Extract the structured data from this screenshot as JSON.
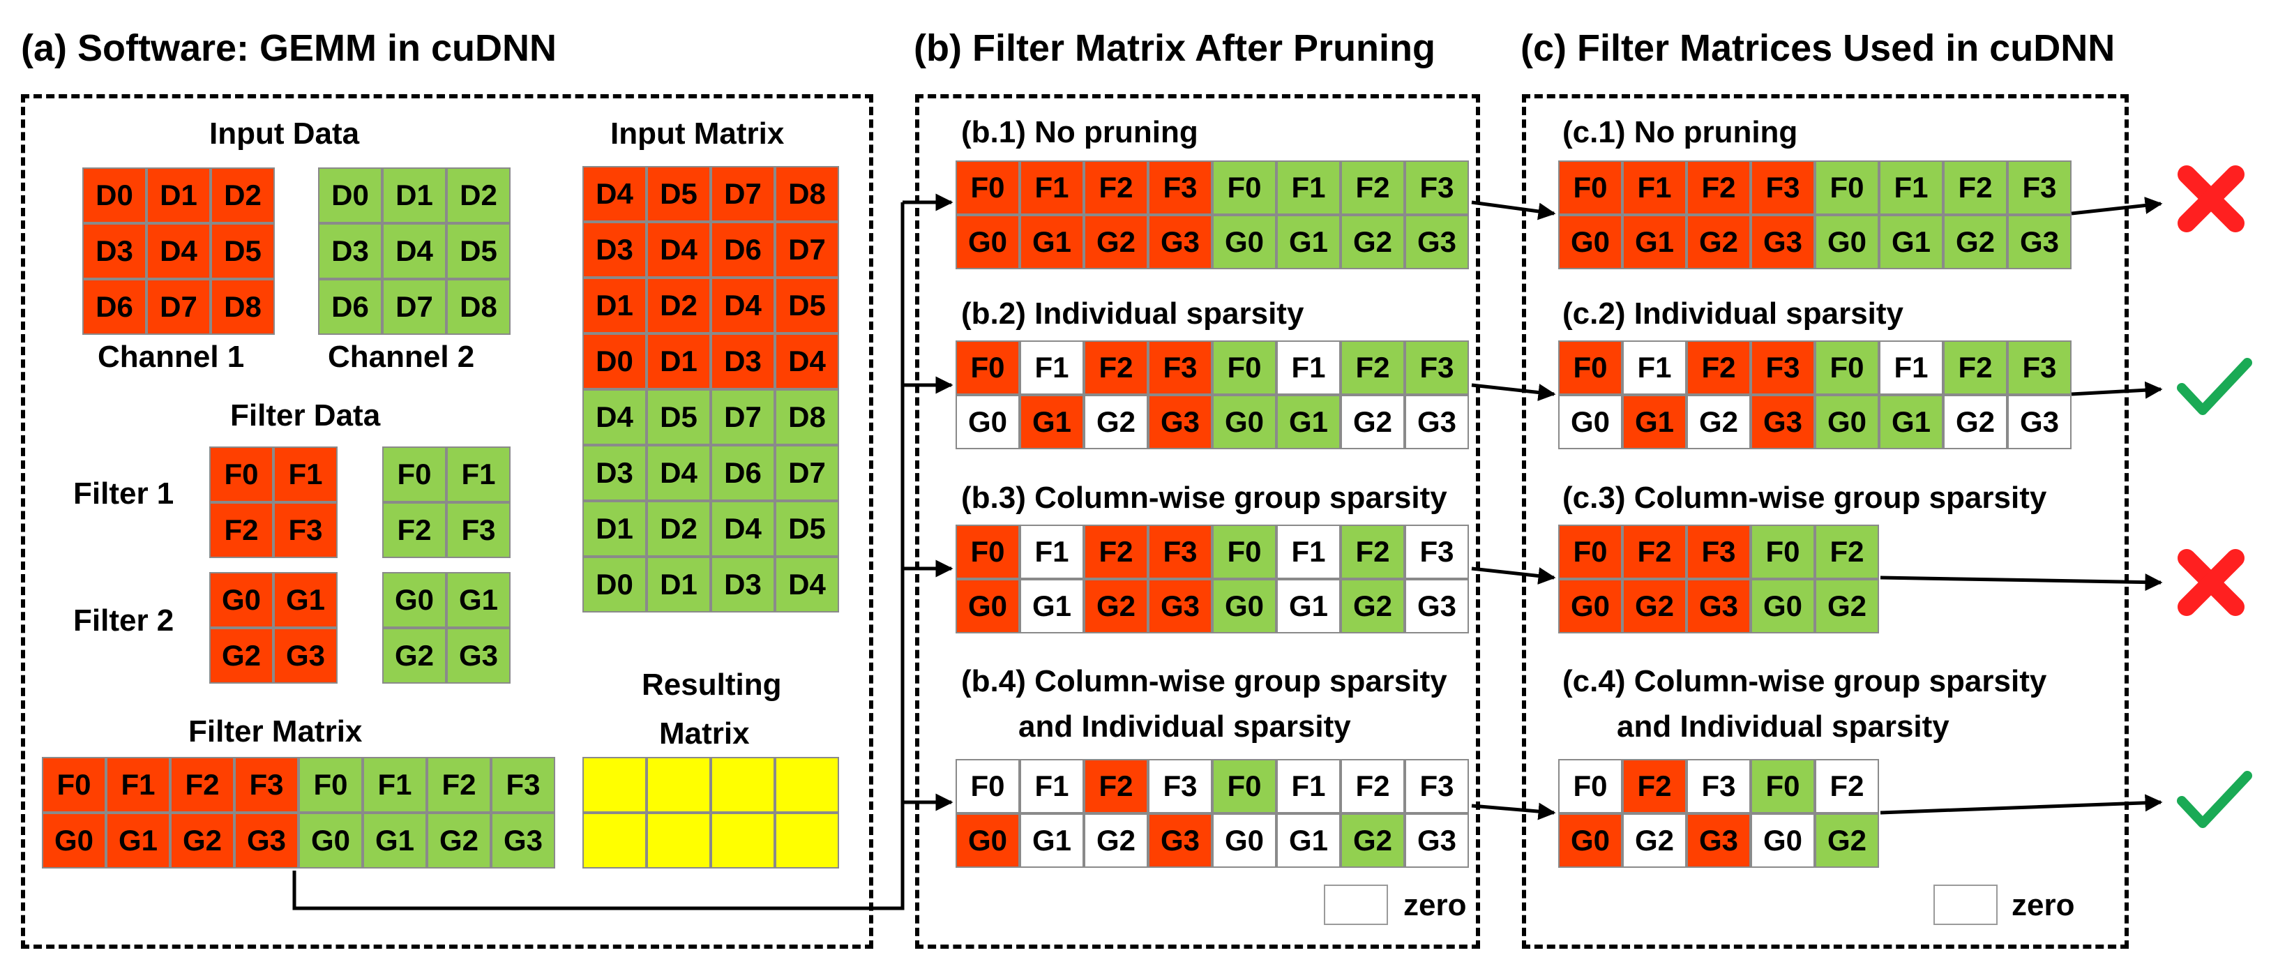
{
  "colors": {
    "red": "#ff4000",
    "green": "#92d050",
    "white": "#ffffff",
    "yellow": "#ffff00",
    "cross": "#ff2020",
    "check": "#1aaa55"
  },
  "titles": {
    "a": "(a) Software: GEMM in cuDNN",
    "b": "(b) Filter Matrix After Pruning",
    "c": "(c) Filter Matrices Used in cuDNN"
  },
  "software": {
    "input_data_label": "Input Data",
    "channel1_label": "Channel 1",
    "channel2_label": "Channel 2",
    "filter_data_label": "Filter Data",
    "filter1_label": "Filter 1",
    "filter2_label": "Filter 2",
    "filter_matrix_label": "Filter Matrix",
    "input_matrix_label": "Input Matrix",
    "resulting_label_line1": "Resulting",
    "resulting_label_line2": "Matrix",
    "channel_cells": [
      "D0",
      "D1",
      "D2",
      "D3",
      "D4",
      "D5",
      "D6",
      "D7",
      "D8"
    ],
    "filter1_cells": [
      "F0",
      "F1",
      "F2",
      "F3"
    ],
    "filter2_cells": [
      "G0",
      "G1",
      "G2",
      "G3"
    ],
    "input_matrix_rows": [
      [
        "D4",
        "D5",
        "D7",
        "D8"
      ],
      [
        "D3",
        "D4",
        "D6",
        "D7"
      ],
      [
        "D1",
        "D2",
        "D4",
        "D5"
      ],
      [
        "D0",
        "D1",
        "D3",
        "D4"
      ],
      [
        "D4",
        "D5",
        "D7",
        "D8"
      ],
      [
        "D3",
        "D4",
        "D6",
        "D7"
      ],
      [
        "D1",
        "D2",
        "D4",
        "D5"
      ],
      [
        "D0",
        "D1",
        "D3",
        "D4"
      ]
    ],
    "filter_matrix_rows": [
      [
        "F0",
        "F1",
        "F2",
        "F3",
        "F0",
        "F1",
        "F2",
        "F3"
      ],
      [
        "G0",
        "G1",
        "G2",
        "G3",
        "G0",
        "G1",
        "G2",
        "G3"
      ]
    ]
  },
  "pruning": [
    {
      "label": "(b.1) No pruning",
      "rows": [
        [
          "F0",
          "F1",
          "F2",
          "F3",
          "F0",
          "F1",
          "F2",
          "F3"
        ],
        [
          "G0",
          "G1",
          "G2",
          "G3",
          "G0",
          "G1",
          "G2",
          "G3"
        ]
      ],
      "colors": [
        [
          "r",
          "r",
          "r",
          "r",
          "g",
          "g",
          "g",
          "g"
        ],
        [
          "r",
          "r",
          "r",
          "r",
          "g",
          "g",
          "g",
          "g"
        ]
      ]
    },
    {
      "label": "(b.2) Individual sparsity",
      "rows": [
        [
          "F0",
          "F1",
          "F2",
          "F3",
          "F0",
          "F1",
          "F2",
          "F3"
        ],
        [
          "G0",
          "G1",
          "G2",
          "G3",
          "G0",
          "G1",
          "G2",
          "G3"
        ]
      ],
      "colors": [
        [
          "r",
          "w",
          "r",
          "r",
          "g",
          "w",
          "g",
          "g"
        ],
        [
          "w",
          "r",
          "w",
          "r",
          "g",
          "g",
          "w",
          "w"
        ]
      ]
    },
    {
      "label": "(b.3) Column-wise group sparsity",
      "rows": [
        [
          "F0",
          "F1",
          "F2",
          "F3",
          "F0",
          "F1",
          "F2",
          "F3"
        ],
        [
          "G0",
          "G1",
          "G2",
          "G3",
          "G0",
          "G1",
          "G2",
          "G3"
        ]
      ],
      "colors": [
        [
          "r",
          "w",
          "r",
          "r",
          "g",
          "w",
          "g",
          "w"
        ],
        [
          "r",
          "w",
          "r",
          "r",
          "g",
          "w",
          "g",
          "w"
        ]
      ]
    },
    {
      "label_line1": "(b.4) Column-wise group sparsity",
      "label_line2": "and Individual sparsity",
      "rows": [
        [
          "F0",
          "F1",
          "F2",
          "F3",
          "F0",
          "F1",
          "F2",
          "F3"
        ],
        [
          "G0",
          "G1",
          "G2",
          "G3",
          "G0",
          "G1",
          "G2",
          "G3"
        ]
      ],
      "colors": [
        [
          "w",
          "w",
          "r",
          "w",
          "g",
          "w",
          "w",
          "w"
        ],
        [
          "r",
          "w",
          "w",
          "r",
          "w",
          "w",
          "g",
          "w"
        ]
      ]
    }
  ],
  "cudnn": [
    {
      "label": "(c.1) No pruning",
      "result": "cross",
      "rows": [
        [
          "F0",
          "F1",
          "F2",
          "F3",
          "F0",
          "F1",
          "F2",
          "F3"
        ],
        [
          "G0",
          "G1",
          "G2",
          "G3",
          "G0",
          "G1",
          "G2",
          "G3"
        ]
      ],
      "colors": [
        [
          "r",
          "r",
          "r",
          "r",
          "g",
          "g",
          "g",
          "g"
        ],
        [
          "r",
          "r",
          "r",
          "r",
          "g",
          "g",
          "g",
          "g"
        ]
      ]
    },
    {
      "label": "(c.2) Individual sparsity",
      "result": "check",
      "rows": [
        [
          "F0",
          "F1",
          "F2",
          "F3",
          "F0",
          "F1",
          "F2",
          "F3"
        ],
        [
          "G0",
          "G1",
          "G2",
          "G3",
          "G0",
          "G1",
          "G2",
          "G3"
        ]
      ],
      "colors": [
        [
          "r",
          "w",
          "r",
          "r",
          "g",
          "w",
          "g",
          "g"
        ],
        [
          "w",
          "r",
          "w",
          "r",
          "g",
          "g",
          "w",
          "w"
        ]
      ]
    },
    {
      "label": "(c.3) Column-wise group sparsity",
      "result": "cross",
      "rows": [
        [
          "F0",
          "F2",
          "F3",
          "F0",
          "F2"
        ],
        [
          "G0",
          "G2",
          "G3",
          "G0",
          "G2"
        ]
      ],
      "colors": [
        [
          "r",
          "r",
          "r",
          "g",
          "g"
        ],
        [
          "r",
          "r",
          "r",
          "g",
          "g"
        ]
      ]
    },
    {
      "label_line1": "(c.4) Column-wise group sparsity",
      "label_line2": "and Individual sparsity",
      "result": "check",
      "rows": [
        [
          "F0",
          "F2",
          "F3",
          "F0",
          "F2"
        ],
        [
          "G0",
          "G2",
          "G3",
          "G0",
          "G2"
        ]
      ],
      "colors": [
        [
          "w",
          "r",
          "w",
          "g",
          "w"
        ],
        [
          "r",
          "w",
          "r",
          "w",
          "g"
        ]
      ]
    }
  ],
  "legend": {
    "zero_label": "zero"
  }
}
